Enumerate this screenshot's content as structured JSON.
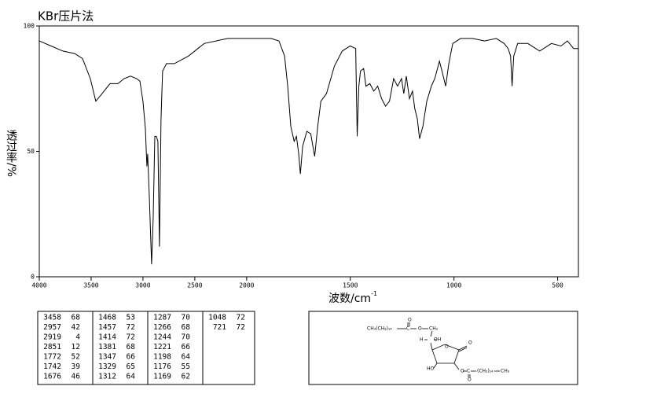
{
  "chart_data": {
    "type": "line",
    "title": "KBr压片法",
    "x_label": "波数/cm",
    "x_label_sup": "-1",
    "y_label": "透过率/%",
    "xlim": [
      4000,
      400
    ],
    "xbreak": 2000,
    "xticks": [
      4000,
      3500,
      3000,
      2500,
      2000,
      1500,
      1000,
      500
    ],
    "ylim": [
      0,
      100
    ],
    "yticks": [
      0,
      50,
      100
    ],
    "color": "#000000",
    "x": [
      4000,
      3886,
      3773,
      3659,
      3583,
      3508,
      3455,
      3394,
      3318,
      3242,
      3182,
      3121,
      3061,
      3030,
      3000,
      2977,
      2962,
      2955,
      2939,
      2917,
      2902,
      2886,
      2871,
      2856,
      2841,
      2826,
      2811,
      2773,
      2697,
      2561,
      2409,
      2182,
      1977,
      1882,
      1844,
      1817,
      1802,
      1787,
      1771,
      1760,
      1749,
      1741,
      1730,
      1710,
      1691,
      1672,
      1657,
      1642,
      1615,
      1577,
      1539,
      1501,
      1474,
      1467,
      1459,
      1451,
      1436,
      1425,
      1406,
      1387,
      1368,
      1349,
      1330,
      1311,
      1291,
      1272,
      1253,
      1242,
      1230,
      1215,
      1200,
      1189,
      1177,
      1166,
      1150,
      1131,
      1109,
      1093,
      1070,
      1055,
      1040,
      1025,
      1006,
      968,
      910,
      853,
      796,
      758,
      739,
      727,
      720,
      712,
      693,
      644,
      587,
      530,
      484,
      453,
      423,
      400
    ],
    "values": [
      94,
      92,
      90,
      89,
      87,
      79,
      70,
      73,
      77,
      77,
      79,
      80,
      79,
      78,
      70,
      59,
      44,
      49,
      32,
      5,
      23,
      56,
      56,
      54,
      12,
      63,
      82,
      85,
      85,
      88,
      93,
      95,
      95,
      95,
      94,
      88,
      76,
      60,
      54,
      56,
      49,
      41,
      52,
      58,
      57,
      48,
      60,
      70,
      73,
      84,
      90,
      92,
      91,
      56,
      76,
      82,
      83,
      76,
      77,
      74,
      76,
      71,
      68,
      70,
      79,
      76,
      79,
      73,
      80,
      71,
      74,
      67,
      63,
      55,
      60,
      70,
      76,
      79,
      86,
      81,
      76,
      85,
      93,
      95,
      95,
      94,
      95,
      93,
      91,
      88,
      76,
      88,
      93,
      93,
      90,
      93,
      92,
      94,
      91,
      91
    ]
  },
  "peak_table": {
    "columns": [
      [
        [
          3458,
          68
        ],
        [
          2957,
          42
        ],
        [
          2919,
          4
        ],
        [
          2851,
          12
        ],
        [
          1772,
          52
        ],
        [
          1742,
          39
        ],
        [
          1676,
          46
        ]
      ],
      [
        [
          1468,
          53
        ],
        [
          1457,
          72
        ],
        [
          1414,
          72
        ],
        [
          1381,
          68
        ],
        [
          1347,
          66
        ],
        [
          1329,
          65
        ],
        [
          1312,
          64
        ]
      ],
      [
        [
          1287,
          70
        ],
        [
          1266,
          68
        ],
        [
          1244,
          70
        ],
        [
          1221,
          66
        ],
        [
          1198,
          64
        ],
        [
          1176,
          55
        ],
        [
          1169,
          62
        ]
      ],
      [
        [
          1048,
          72
        ],
        [
          721,
          72
        ]
      ]
    ]
  },
  "structure": {
    "labels": [
      "CH₃(CH₂)₁₄",
      "C",
      "O",
      "O",
      "CH₂",
      "H",
      "OH",
      "O",
      "O",
      "HO",
      "O",
      "C",
      "O",
      "(CH₂)₁₄",
      "CH₃"
    ]
  }
}
